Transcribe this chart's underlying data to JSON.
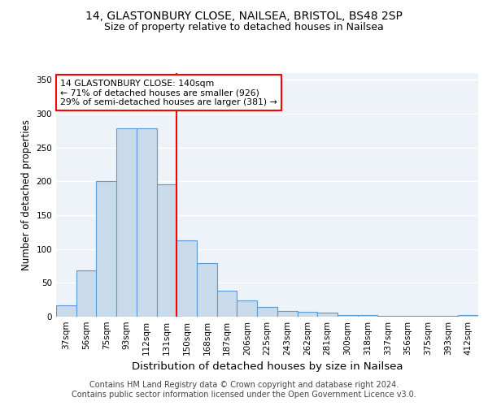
{
  "title1": "14, GLASTONBURY CLOSE, NAILSEA, BRISTOL, BS48 2SP",
  "title2": "Size of property relative to detached houses in Nailsea",
  "xlabel": "Distribution of detached houses by size in Nailsea",
  "ylabel": "Number of detached properties",
  "footnote1": "Contains HM Land Registry data © Crown copyright and database right 2024.",
  "footnote2": "Contains public sector information licensed under the Open Government Licence v3.0.",
  "categories": [
    "37sqm",
    "56sqm",
    "75sqm",
    "93sqm",
    "112sqm",
    "131sqm",
    "150sqm",
    "168sqm",
    "187sqm",
    "206sqm",
    "225sqm",
    "243sqm",
    "262sqm",
    "281sqm",
    "300sqm",
    "318sqm",
    "337sqm",
    "356sqm",
    "375sqm",
    "393sqm",
    "412sqm"
  ],
  "values": [
    17,
    68,
    200,
    278,
    278,
    196,
    113,
    79,
    39,
    24,
    14,
    9,
    7,
    6,
    3,
    2,
    1,
    1,
    1,
    1,
    3
  ],
  "bar_color": "#c9daea",
  "bar_edge_color": "#5b9bd5",
  "annotation_label": "14 GLASTONBURY CLOSE: 140sqm",
  "annotation_line1": "← 71% of detached houses are smaller (926)",
  "annotation_line2": "29% of semi-detached houses are larger (381) →",
  "annotation_box_color": "white",
  "annotation_box_edge": "red",
  "vline_color": "red",
  "ylim": [
    0,
    360
  ],
  "yticks": [
    0,
    50,
    100,
    150,
    200,
    250,
    300,
    350
  ],
  "bg_color": "#eef2f9",
  "grid_color": "white",
  "title1_fontsize": 10,
  "title2_fontsize": 9,
  "xlabel_fontsize": 9.5,
  "ylabel_fontsize": 8.5,
  "tick_fontsize": 7.5,
  "footnote_fontsize": 7
}
